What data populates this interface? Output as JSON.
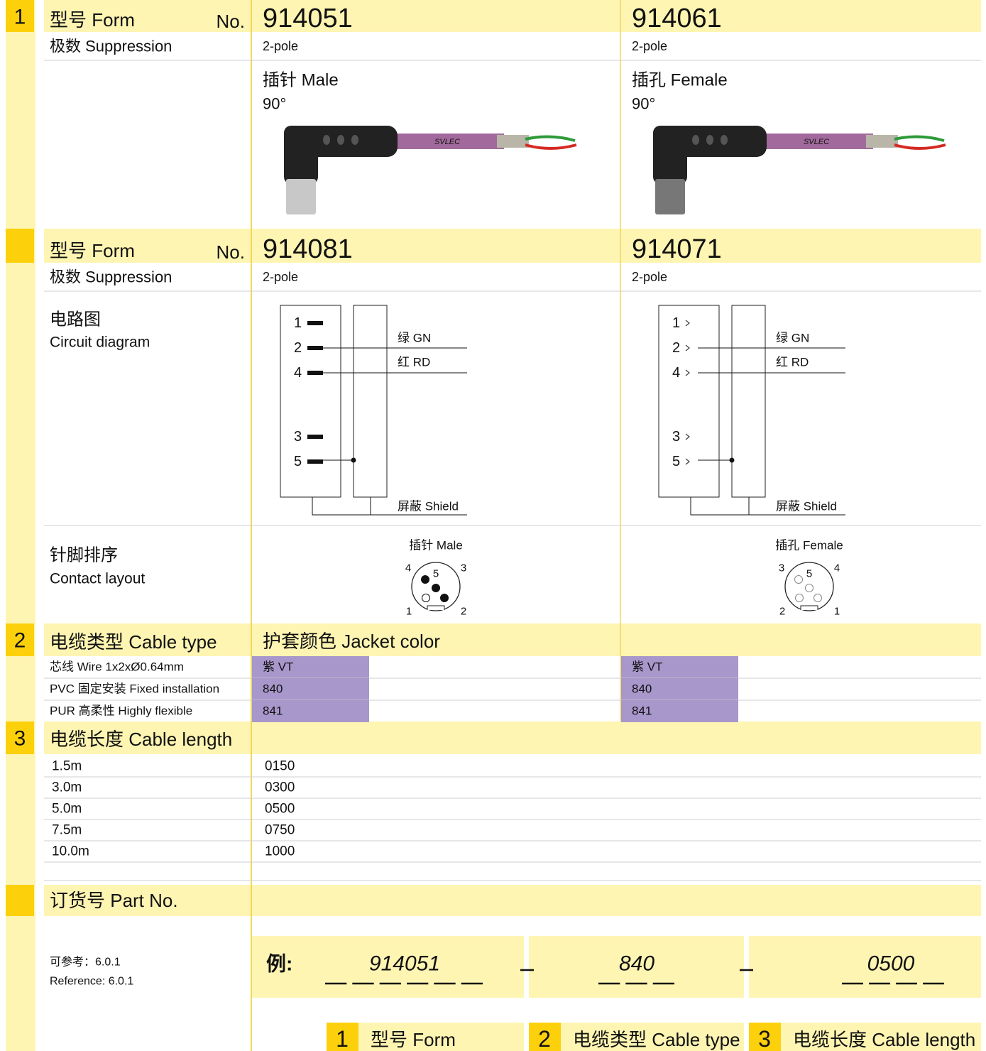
{
  "section1": {
    "number": "1",
    "form_label": "型号 Form",
    "no_label": "No.",
    "products": [
      "914051",
      "914061"
    ],
    "poles_label": "极数 Suppression",
    "poles": [
      "2-pole",
      "2-pole"
    ],
    "types": [
      {
        "name": "插针 Male",
        "angle": "90°",
        "cable_print": "SVLEC"
      },
      {
        "name": "插孔 Female",
        "angle": "90°",
        "cable_print": "SVLEC"
      }
    ]
  },
  "section1b": {
    "form_label": "型号 Form",
    "no_label": "No.",
    "products": [
      "914081",
      "914071"
    ],
    "poles_label": "极数 Suppression",
    "poles": [
      "2-pole",
      "2-pole"
    ],
    "circuit_label": [
      "电路图",
      "Circuit diagram"
    ],
    "circuits": [
      {
        "pins": [
          "1",
          "2",
          "4",
          "3",
          "5"
        ],
        "wires": [
          "绿 GN",
          "红 RD"
        ],
        "shield": "屏蔽 Shield"
      },
      {
        "pins": [
          "1",
          "2",
          "4",
          "3",
          "5"
        ],
        "wires": [
          "绿 GN",
          "红 RD"
        ],
        "shield": "屏蔽 Shield"
      }
    ],
    "layout_label": [
      "针脚排序",
      "Contact layout"
    ],
    "layouts": [
      {
        "title": "插针 Male",
        "pins": [
          "4",
          "5",
          "3",
          "1",
          "2"
        ]
      },
      {
        "title": "插孔 Female",
        "pins": [
          "3",
          "5",
          "4",
          "2",
          "1"
        ]
      }
    ]
  },
  "section2": {
    "number": "2",
    "title": "电缆类型 Cable type",
    "jacket_label": "护套颜色 Jacket color",
    "rows": [
      {
        "label": "芯线  Wire 1x2xØ0.64mm",
        "codes": [
          "紫 VT",
          "紫 VT"
        ]
      },
      {
        "label": "PVC 固定安装  Fixed installation",
        "codes": [
          "840",
          "840"
        ]
      },
      {
        "label": "PUR 高柔性  Highly flexible",
        "codes": [
          "841",
          "841"
        ]
      }
    ]
  },
  "section3": {
    "number": "3",
    "title": "电缆长度 Cable length",
    "rows": [
      [
        "1.5m",
        "0150"
      ],
      [
        "3.0m",
        "0300"
      ],
      [
        "5.0m",
        "0500"
      ],
      [
        "7.5m",
        "0750"
      ],
      [
        "10.0m",
        "1000"
      ]
    ]
  },
  "part_no": {
    "title": "订货号 Part No.",
    "reference": [
      "可参考：6.0.1",
      "Reference: 6.0.1"
    ],
    "example_label": "例:",
    "example_values": [
      "914051",
      "840",
      "0500"
    ],
    "legend": [
      {
        "number": "1",
        "label": "型号 Form"
      },
      {
        "number": "2",
        "label": "电缆类型 Cable type"
      },
      {
        "number": "3",
        "label": "电缆长度 Cable length"
      }
    ]
  }
}
